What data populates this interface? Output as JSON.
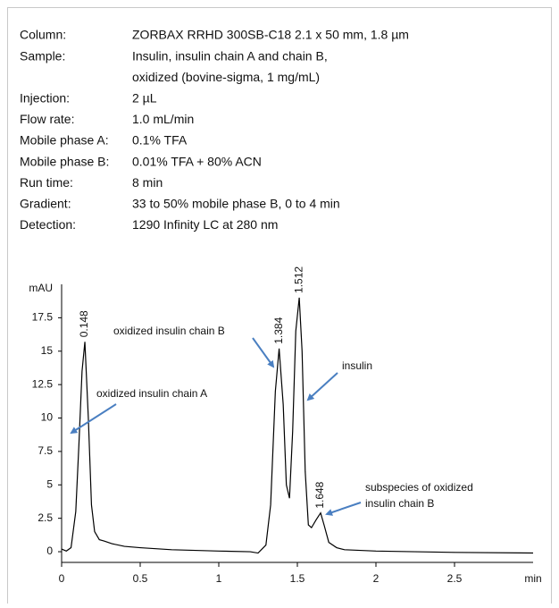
{
  "header": {
    "rows": [
      {
        "label": "Column:",
        "lines": [
          "ZORBAX RRHD 300SB-C18 2.1 x 50 mm, 1.8 µm"
        ]
      },
      {
        "label": "Sample:",
        "lines": [
          "Insulin, insulin chain A and chain B,",
          "oxidized (bovine-sigma, 1 mg/mL)"
        ]
      },
      {
        "label": "Injection:",
        "lines": [
          "2 µL"
        ]
      },
      {
        "label": "Flow rate:",
        "lines": [
          "1.0 mL/min"
        ]
      },
      {
        "label": "Mobile phase A:",
        "lines": [
          "0.1% TFA"
        ]
      },
      {
        "label": "Mobile phase B:",
        "lines": [
          "0.01% TFA + 80% ACN"
        ]
      },
      {
        "label": "Run time:",
        "lines": [
          "8 min"
        ]
      },
      {
        "label": "Gradient:",
        "lines": [
          "33 to 50% mobile phase B, 0 to 4 min"
        ]
      },
      {
        "label": "Detection:",
        "lines": [
          "1290 Infinity LC at 280 nm"
        ]
      }
    ]
  },
  "chart_data": {
    "type": "line",
    "y_label": "mAU",
    "x_label": "min",
    "color": "#000000",
    "x": [
      0,
      0.03,
      0.06,
      0.09,
      0.11,
      0.13,
      0.148,
      0.17,
      0.19,
      0.21,
      0.24,
      0.27,
      0.32,
      0.4,
      0.5,
      0.7,
      1.0,
      1.2,
      1.25,
      1.3,
      1.33,
      1.36,
      1.384,
      1.41,
      1.43,
      1.45,
      1.47,
      1.49,
      1.512,
      1.53,
      1.55,
      1.57,
      1.59,
      1.62,
      1.648,
      1.67,
      1.7,
      1.75,
      1.8,
      2.0,
      2.5,
      3.0
    ],
    "values": [
      0.2,
      0.05,
      0.3,
      3,
      8,
      13.5,
      15.7,
      10,
      3.5,
      1.5,
      0.9,
      0.8,
      0.6,
      0.4,
      0.3,
      0.15,
      0.05,
      0,
      -0.1,
      0.5,
      3.5,
      12,
      15.2,
      11,
      5,
      4,
      9,
      16.5,
      19,
      15,
      6,
      2,
      1.8,
      2.4,
      2.9,
      2,
      0.7,
      0.3,
      0.15,
      0.05,
      -0.05,
      -0.1
    ],
    "peak_labels": [
      0.148,
      1.384,
      1.512,
      1.648
    ],
    "annotations": [
      [
        "oxidized insulin chain A"
      ],
      [
        "oxidized insulin chain B"
      ],
      [
        "insulin"
      ],
      [
        "subspecies of oxidized",
        "insulin chain B"
      ]
    ],
    "annotation_color": "#4a7fc1",
    "xlim": [
      0,
      3
    ],
    "xticks": [
      0,
      0.5,
      1,
      1.5,
      2,
      2.5
    ],
    "ylim": [
      -0.8,
      20
    ],
    "yticks": [
      0,
      2.5,
      5,
      7.5,
      10,
      12.5,
      15,
      17.5
    ]
  }
}
